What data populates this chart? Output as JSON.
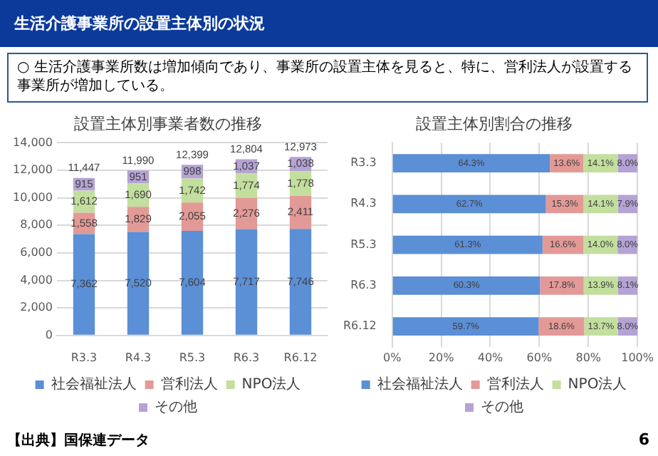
{
  "chart_data": [
    {
      "type": "other",
      "title": "生活介護事業所の設置主体別の状況",
      "annotations": [
        "○ 生活介護事業所数は増加傾向であり、事業所の設置主体を見ると、特に、営利法人が設置する事業所が増加している。",
        "【出典】国保連データ",
        "6"
      ]
    },
    {
      "type": "bar",
      "title": "設置主体別事業者数の推移",
      "categories": [
        "R3.3",
        "R4.3",
        "R5.3",
        "R6.3",
        "R6.12"
      ],
      "stacked": true,
      "ylim": [
        0,
        14000
      ],
      "yticks": [
        {
          "value": 0,
          "label": "0"
        },
        {
          "value": 2000,
          "label": "2,000"
        },
        {
          "value": 4000,
          "label": "4,000"
        },
        {
          "value": 6000,
          "label": "6,000"
        },
        {
          "value": 8000,
          "label": "8,000"
        },
        {
          "value": 10000,
          "label": "10,000"
        },
        {
          "value": 12000,
          "label": "12,000"
        },
        {
          "value": 14000,
          "label": "14,000"
        }
      ],
      "grid": "y",
      "legend": "bottom",
      "totals": [
        "11,447",
        "11,990",
        "12,399",
        "12,804",
        "12,973"
      ],
      "series": [
        {
          "name": "社会福祉法人",
          "color": "#5b8fd6",
          "values": [
            7362,
            7520,
            7604,
            7717,
            7746
          ],
          "value_labels": [
            "7,362",
            "7,520",
            "7,604",
            "7,717",
            "7,746"
          ]
        },
        {
          "name": "営利法人",
          "color": "#e39a97",
          "values": [
            1558,
            1829,
            2055,
            2276,
            2411
          ],
          "value_labels": [
            "1,558",
            "1,829",
            "2,055",
            "2,276",
            "2,411"
          ]
        },
        {
          "name": "NPO法人",
          "color": "#c3df9e",
          "values": [
            1612,
            1690,
            1742,
            1774,
            1778
          ],
          "value_labels": [
            "1,612",
            "1,690",
            "1,742",
            "1,774",
            "1,778"
          ]
        },
        {
          "name": "その他",
          "color": "#b5a3d5",
          "values": [
            915,
            951,
            998,
            1037,
            1038
          ],
          "value_labels": [
            "915",
            "951",
            "998",
            "1,037",
            "1,038"
          ]
        }
      ]
    },
    {
      "type": "bar",
      "title": "設置主体別割合の推移",
      "orientation": "horizontal",
      "categories": [
        "R3.3",
        "R4.3",
        "R5.3",
        "R6.3",
        "R6.12"
      ],
      "stacked": true,
      "xlim": [
        0,
        100
      ],
      "xticks": [
        {
          "value": 0,
          "label": "0%"
        },
        {
          "value": 20,
          "label": "20%"
        },
        {
          "value": 40,
          "label": "40%"
        },
        {
          "value": 60,
          "label": "60%"
        },
        {
          "value": 80,
          "label": "80%"
        },
        {
          "value": 100,
          "label": "100%"
        }
      ],
      "grid": "x",
      "legend": "bottom",
      "series": [
        {
          "name": "社会福祉法人",
          "color": "#5b8fd6",
          "values": [
            64.3,
            62.7,
            61.3,
            60.3,
            59.7
          ],
          "value_labels": [
            "64.3%",
            "62.7%",
            "61.3%",
            "60.3%",
            "59.7%"
          ]
        },
        {
          "name": "営利法人",
          "color": "#e39a97",
          "values": [
            13.6,
            15.3,
            16.6,
            17.8,
            18.6
          ],
          "value_labels": [
            "13.6%",
            "15.3%",
            "16.6%",
            "17.8%",
            "18.6%"
          ]
        },
        {
          "name": "NPO法人",
          "color": "#c3df9e",
          "values": [
            14.1,
            14.1,
            14.0,
            13.9,
            13.7
          ],
          "value_labels": [
            "14.1%",
            "14.1%",
            "14.0%",
            "13.9%",
            "13.7%"
          ]
        },
        {
          "name": "その他",
          "color": "#b5a3d5",
          "values": [
            8.0,
            7.9,
            8.0,
            8.1,
            8.0
          ],
          "value_labels": [
            "8.0%",
            "7.9%",
            "8.0%",
            "8.1%",
            "8.0%"
          ]
        }
      ]
    }
  ]
}
